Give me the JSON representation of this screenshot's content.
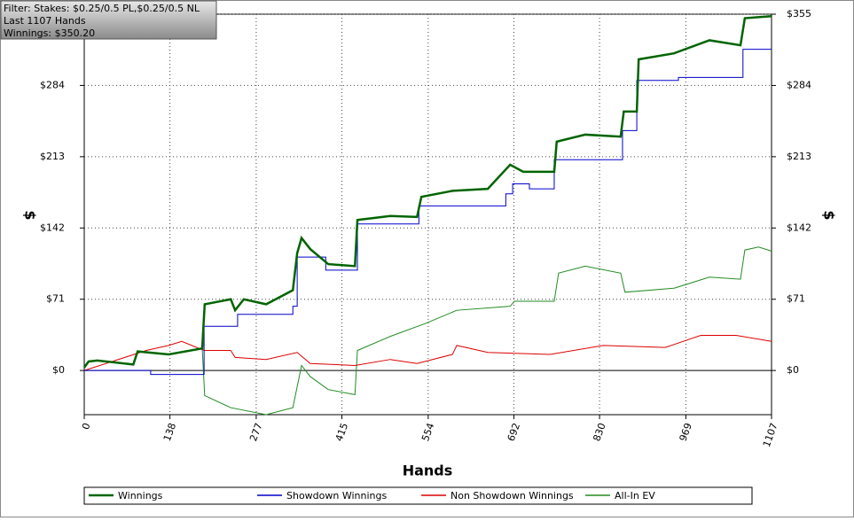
{
  "chart_data": {
    "type": "line",
    "annotations": [
      "Filter: Stakes: $0.25/0.5 PL,$0.25/0.5 NL",
      "Last 1107 Hands",
      "Winnings: $350.20"
    ],
    "xlabel": "Hands",
    "ylabel": "$",
    "xlim": [
      0,
      1107
    ],
    "xticks": [
      0,
      138,
      277,
      415,
      554,
      692,
      830,
      969,
      1107
    ],
    "ylim": [
      -44,
      355
    ],
    "yticks": [
      {
        "value": 0,
        "label": "$0"
      },
      {
        "value": 71,
        "label": "$71"
      },
      {
        "value": 142,
        "label": "$142"
      },
      {
        "value": 213,
        "label": "$213"
      },
      {
        "value": 284,
        "label": "$284"
      },
      {
        "value": 355,
        "label": "$355"
      }
    ],
    "grid": true,
    "series": [
      {
        "name": "Winnings",
        "color": "#006400",
        "x": [
          0,
          7,
          21,
          79,
          86,
          136,
          190,
          194,
          236,
          243,
          257,
          293,
          336,
          343,
          350,
          364,
          393,
          436,
          440,
          493,
          536,
          543,
          593,
          650,
          686,
          707,
          757,
          761,
          807,
          864,
          869,
          890,
          893,
          950,
          1007,
          1057,
          1064,
          1107
        ],
        "values": [
          3,
          9,
          10,
          6,
          19,
          16,
          22,
          66,
          71,
          60,
          71,
          66,
          80,
          117,
          132,
          121,
          106,
          104,
          150,
          154,
          153,
          173,
          179,
          181,
          205,
          198,
          198,
          228,
          235,
          233,
          258,
          258,
          310,
          316,
          329,
          324,
          351,
          353
        ]
      },
      {
        "name": "Showdown Winnings",
        "color": "#0000cc",
        "x": [
          0,
          107,
          107,
          193,
          193,
          247,
          247,
          336,
          336,
          343,
          343,
          389,
          389,
          440,
          440,
          539,
          539,
          679,
          679,
          690,
          690,
          717,
          717,
          757,
          757,
          867,
          867,
          890,
          890,
          957,
          957,
          1061,
          1061,
          1107
        ],
        "values": [
          0,
          0,
          -4,
          -4,
          44,
          44,
          56,
          56,
          64,
          64,
          113,
          113,
          100,
          100,
          146,
          146,
          164,
          164,
          176,
          176,
          186,
          186,
          181,
          181,
          210,
          210,
          239,
          239,
          289,
          289,
          292,
          292,
          320,
          320
        ]
      },
      {
        "name": "Non Showdown Winnings",
        "color": "#dd0000",
        "x": [
          0,
          100,
          136,
          157,
          193,
          236,
          243,
          293,
          343,
          364,
          436,
          493,
          536,
          593,
          600,
          650,
          750,
          836,
          936,
          993,
          1050,
          1107
        ],
        "values": [
          0,
          20,
          25,
          29,
          20,
          20,
          13,
          11,
          18,
          7,
          5,
          11,
          7,
          16,
          25,
          18,
          16,
          25,
          23,
          35,
          35,
          29
        ]
      },
      {
        "name": "All-In EV",
        "color": "#228b22",
        "x": [
          0,
          7,
          21,
          79,
          86,
          136,
          190,
          194,
          236,
          293,
          336,
          350,
          364,
          393,
          436,
          440,
          493,
          550,
          600,
          686,
          693,
          757,
          764,
          807,
          864,
          871,
          950,
          1007,
          1057,
          1064,
          1086,
          1107
        ],
        "values": [
          3,
          9,
          10,
          6,
          19,
          16,
          22,
          -25,
          -37,
          -44,
          -37,
          5,
          -6,
          -19,
          -24,
          20,
          34,
          47,
          60,
          64,
          69,
          69,
          97,
          104,
          97,
          78,
          82,
          93,
          91,
          120,
          123,
          119
        ]
      }
    ]
  }
}
